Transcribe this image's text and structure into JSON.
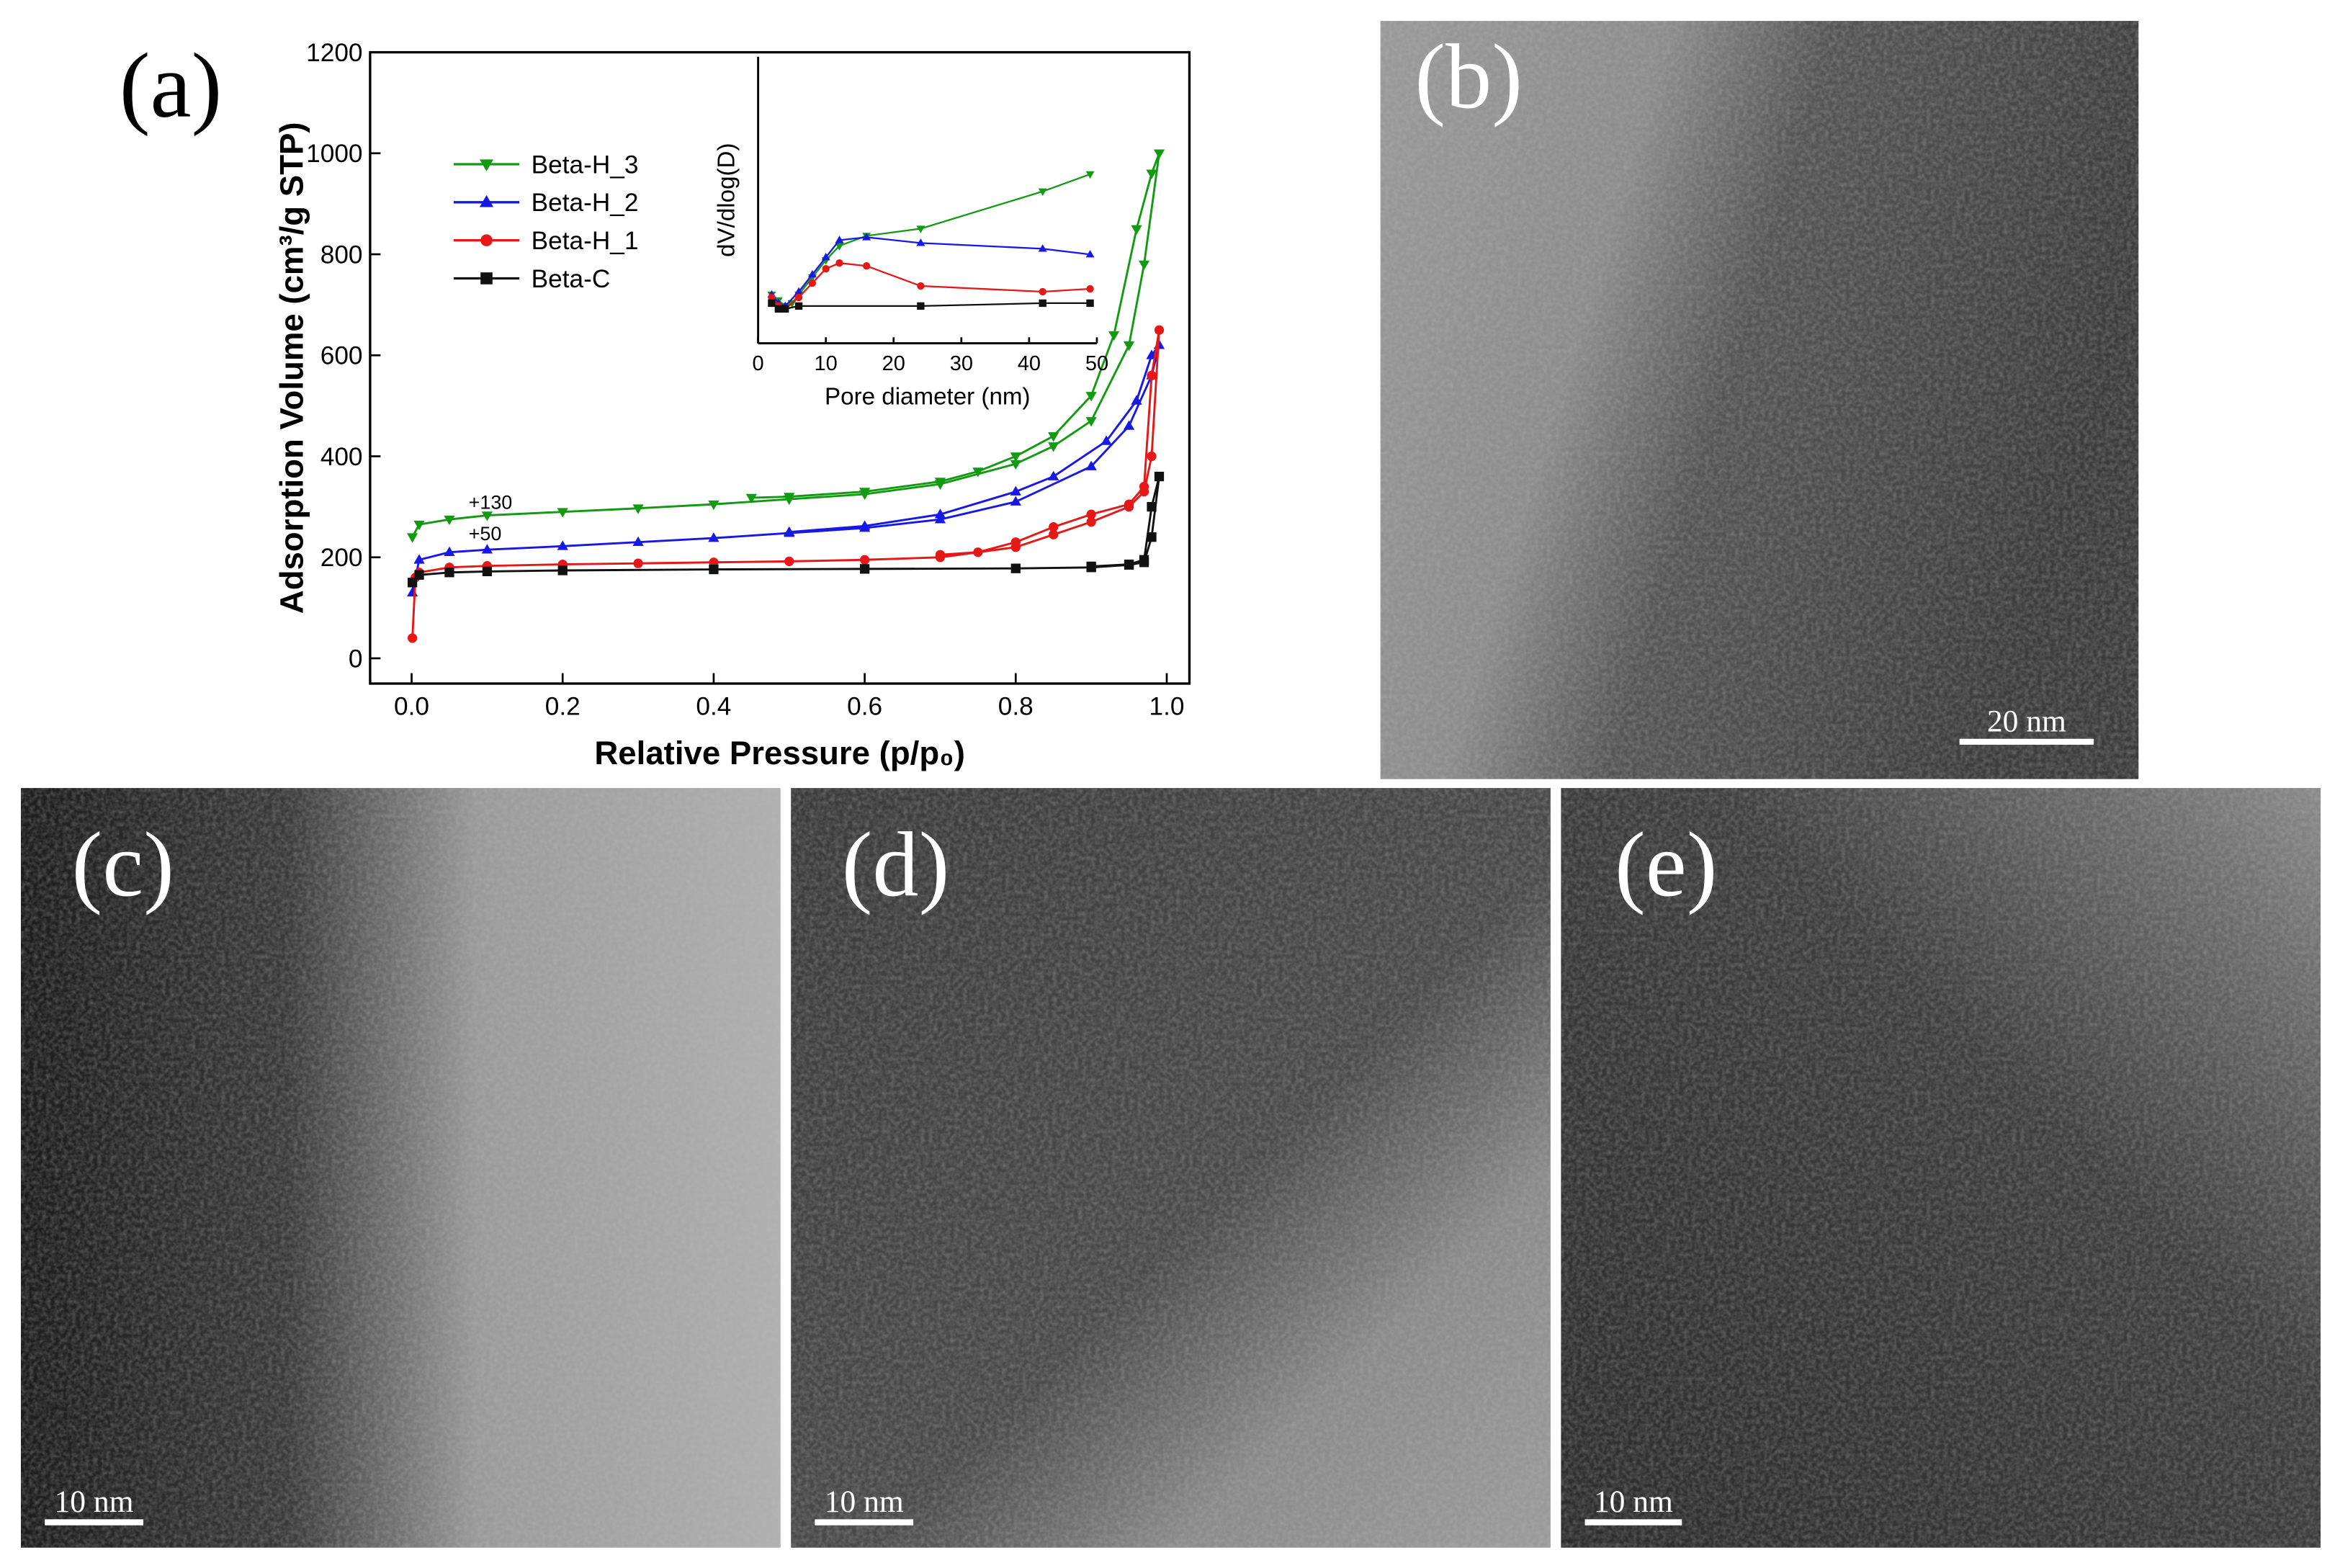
{
  "chart_data": [
    {
      "type": "line",
      "x_label": "Relative Pressure (p/p₀)",
      "y_label": "Adsorption Volume (cm³/g STP)",
      "xlim": [
        -0.055,
        1.03
      ],
      "ylim": [
        -50,
        1200
      ],
      "xticks": [
        {
          "value": 0,
          "label": "0.0"
        },
        {
          "value": 0.2,
          "label": "0.2"
        },
        {
          "value": 0.4,
          "label": "0.4"
        },
        {
          "value": 0.6,
          "label": "0.6"
        },
        {
          "value": 0.8,
          "label": "0.8"
        },
        {
          "value": 1,
          "label": "1.0"
        }
      ],
      "yticks": [
        0,
        200,
        400,
        600,
        800,
        1000,
        1200
      ],
      "annotations": [
        "+130",
        "+50"
      ],
      "series": [
        {
          "name": "Beta-H_3",
          "color": "#129a12",
          "marker": "triangle-down",
          "x": [
            0.001,
            0.01,
            0.05,
            0.1,
            0.2,
            0.3,
            0.4,
            0.5,
            0.6,
            0.7,
            0.8,
            0.85,
            0.9,
            0.95,
            0.97,
            0.99,
            0.98,
            0.96,
            0.93,
            0.9,
            0.85,
            0.8,
            0.75,
            0.7,
            0.6,
            0.5,
            0.45
          ],
          "values": [
            240,
            265,
            275,
            283,
            290,
            297,
            305,
            315,
            325,
            345,
            385,
            420,
            470,
            620,
            780,
            1000,
            960,
            850,
            640,
            520,
            440,
            400,
            370,
            350,
            330,
            320,
            318
          ]
        },
        {
          "name": "Beta-H_2",
          "color": "#1717e6",
          "marker": "triangle-up",
          "x": [
            0.001,
            0.01,
            0.05,
            0.1,
            0.2,
            0.3,
            0.4,
            0.5,
            0.6,
            0.7,
            0.8,
            0.9,
            0.95,
            0.98,
            0.99,
            0.98,
            0.96,
            0.92,
            0.85,
            0.8,
            0.7,
            0.6,
            0.5
          ],
          "values": [
            130,
            195,
            210,
            215,
            222,
            230,
            238,
            248,
            258,
            275,
            310,
            380,
            460,
            560,
            620,
            600,
            510,
            430,
            360,
            330,
            285,
            262,
            250
          ]
        },
        {
          "name": "Beta-H_1",
          "color": "#e61717",
          "marker": "circle",
          "x": [
            0.001,
            0.005,
            0.01,
            0.05,
            0.1,
            0.2,
            0.3,
            0.4,
            0.5,
            0.6,
            0.7,
            0.8,
            0.85,
            0.9,
            0.95,
            0.97,
            0.98,
            0.99,
            0.98,
            0.97,
            0.95,
            0.9,
            0.85,
            0.8,
            0.75,
            0.7
          ],
          "values": [
            40,
            160,
            170,
            180,
            183,
            186,
            188,
            190,
            192,
            195,
            200,
            220,
            245,
            270,
            300,
            330,
            400,
            650,
            560,
            340,
            305,
            285,
            260,
            230,
            210,
            205
          ]
        },
        {
          "name": "Beta-C",
          "color": "#111111",
          "marker": "square",
          "x": [
            0.001,
            0.01,
            0.05,
            0.1,
            0.2,
            0.4,
            0.6,
            0.8,
            0.9,
            0.95,
            0.97,
            0.98,
            0.99,
            0.98,
            0.97,
            0.95,
            0.9
          ],
          "values": [
            150,
            165,
            170,
            172,
            174,
            176,
            177,
            178,
            180,
            185,
            190,
            240,
            360,
            300,
            195,
            186,
            182
          ]
        }
      ]
    },
    {
      "type": "line",
      "x_label": "Pore diameter (nm)",
      "y_label": "dV/dlog(D)",
      "xlim": [
        0,
        50
      ],
      "ylim": [
        0,
        100
      ],
      "xticks": [
        0,
        10,
        20,
        30,
        40,
        50
      ],
      "series": [
        {
          "name": "Beta-H_3",
          "color": "#129a12",
          "marker": "triangle-down",
          "x": [
            2,
            3,
            4,
            5,
            6,
            8,
            10,
            12,
            16,
            24,
            42,
            49
          ],
          "values": [
            17,
            15,
            13,
            14,
            17,
            23,
            29,
            34,
            37.5,
            40,
            53,
            59
          ]
        },
        {
          "name": "Beta-H_2",
          "color": "#1717e6",
          "marker": "triangle-up",
          "x": [
            2,
            3,
            4,
            6,
            8,
            10,
            12,
            16,
            24,
            42,
            49
          ],
          "values": [
            17,
            14,
            13,
            18,
            24,
            30,
            36,
            37,
            35,
            33,
            31
          ]
        },
        {
          "name": "Beta-H_1",
          "color": "#e61717",
          "marker": "circle",
          "x": [
            2,
            3,
            4,
            6,
            8,
            10,
            12,
            16,
            24,
            42,
            49
          ],
          "values": [
            16,
            13,
            12,
            16,
            21,
            26,
            28,
            27,
            20,
            18,
            19
          ]
        },
        {
          "name": "Beta-C",
          "color": "#111111",
          "marker": "square",
          "x": [
            2,
            3,
            4,
            6,
            24,
            42,
            49
          ],
          "values": [
            14,
            12,
            12,
            13,
            13,
            14,
            14
          ]
        }
      ]
    }
  ],
  "panels": [
    {
      "label": "(a)"
    },
    {
      "label": "(b)",
      "scale_bar": "20 nm"
    },
    {
      "label": "(c)",
      "scale_bar": "10 nm"
    },
    {
      "label": "(d)",
      "scale_bar": "10 nm"
    },
    {
      "label": "(e)",
      "scale_bar": "10 nm"
    }
  ]
}
